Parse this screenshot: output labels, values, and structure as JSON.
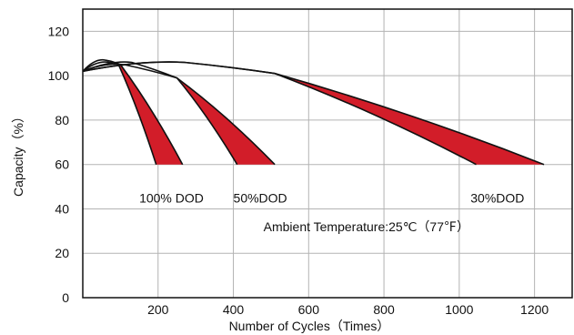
{
  "chart_data": {
    "type": "area",
    "xlabel": "Number of Cycles（Times）",
    "ylabel": "Capacity（%）",
    "xlim": [
      0,
      1300
    ],
    "ylim": [
      0,
      130
    ],
    "x_ticks": [
      200,
      400,
      600,
      800,
      1000,
      1200
    ],
    "y_ticks": [
      0,
      20,
      40,
      60,
      80,
      100,
      120
    ],
    "grid": true,
    "fill_color": "#d21d29",
    "line_color": "#111111",
    "grid_color": "#b3b3b3",
    "series": [
      {
        "name": "100% DOD",
        "upper": {
          "start": [
            0,
            102
          ],
          "peak": [
            60,
            107
          ],
          "knee": [
            100,
            105
          ],
          "end": [
            265,
            60
          ]
        },
        "lower": {
          "start": [
            0,
            102
          ],
          "peak": [
            70,
            106
          ],
          "knee": [
            95,
            105
          ],
          "end": [
            195,
            60
          ]
        }
      },
      {
        "name": "50%DOD",
        "upper": {
          "start": [
            0,
            102
          ],
          "peak": [
            130,
            106
          ],
          "knee": [
            250,
            99
          ],
          "end": [
            510,
            60
          ]
        },
        "lower": {
          "start": [
            0,
            102
          ],
          "peak": [
            110,
            105
          ],
          "knee": [
            250,
            99
          ],
          "end": [
            410,
            60
          ]
        }
      },
      {
        "name": "30%DOD",
        "upper": {
          "start": [
            0,
            102
          ],
          "peak": [
            270,
            106
          ],
          "knee": [
            510,
            101
          ],
          "end": [
            1225,
            60
          ]
        },
        "lower": {
          "start": [
            0,
            102
          ],
          "peak": [
            270,
            106
          ],
          "knee": [
            510,
            101
          ],
          "end": [
            1045,
            60
          ]
        }
      }
    ],
    "annotations": [
      "Ambient Temperature:25℃（77℉）"
    ]
  }
}
